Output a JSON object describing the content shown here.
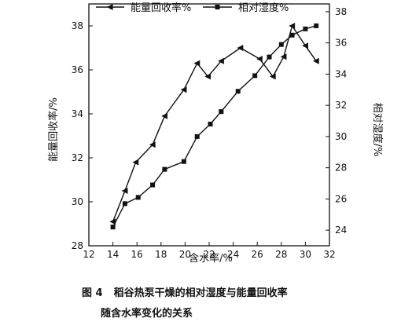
{
  "chart_data": {
    "type": "line",
    "xlabel": "含水率/%",
    "ylabel_left": "能量回收率/%",
    "ylabel_right": "相对湿度/%",
    "xlim": [
      12,
      32
    ],
    "ylim_left": [
      28,
      39
    ],
    "ylim_right": [
      23,
      38.5
    ],
    "x_ticks": [
      12,
      14,
      16,
      18,
      20,
      22,
      24,
      26,
      28,
      30,
      32
    ],
    "y_ticks_left": [
      28,
      30,
      32,
      34,
      36,
      38
    ],
    "y_ticks_right": [
      24,
      26,
      28,
      30,
      32,
      34,
      36,
      38
    ],
    "legend_position": "top",
    "series": [
      {
        "name": "能量回收率%",
        "axis": "left",
        "marker": "triangle-left",
        "x": [
          14.0,
          15.0,
          15.9,
          17.3,
          18.3,
          19.9,
          21.0,
          21.9,
          23.0,
          24.6,
          26.2,
          27.3,
          28.2,
          28.9,
          30.0,
          30.9
        ],
        "y": [
          29.1,
          30.5,
          31.8,
          32.6,
          33.9,
          35.1,
          36.3,
          35.7,
          36.4,
          37.0,
          36.5,
          35.7,
          36.6,
          38.0,
          37.1,
          36.4
        ]
      },
      {
        "name": "相对湿度%",
        "axis": "right",
        "marker": "square",
        "x": [
          14.0,
          15.0,
          16.1,
          17.3,
          18.3,
          19.9,
          21.0,
          22.1,
          23.0,
          24.4,
          25.8,
          27.0,
          28.0,
          28.9,
          30.0,
          30.9
        ],
        "y": [
          24.2,
          25.7,
          26.1,
          26.9,
          27.9,
          28.4,
          30.0,
          30.8,
          31.6,
          32.9,
          33.9,
          35.1,
          35.9,
          36.5,
          36.9,
          37.1
        ]
      }
    ]
  },
  "caption": {
    "figure_label": "图 4",
    "line1": "稻谷热泵干燥的相对湿度与能量回收率",
    "line2": "随含水率变化的关系"
  },
  "colors": {
    "ink": "#111111",
    "background": "#ffffff"
  }
}
